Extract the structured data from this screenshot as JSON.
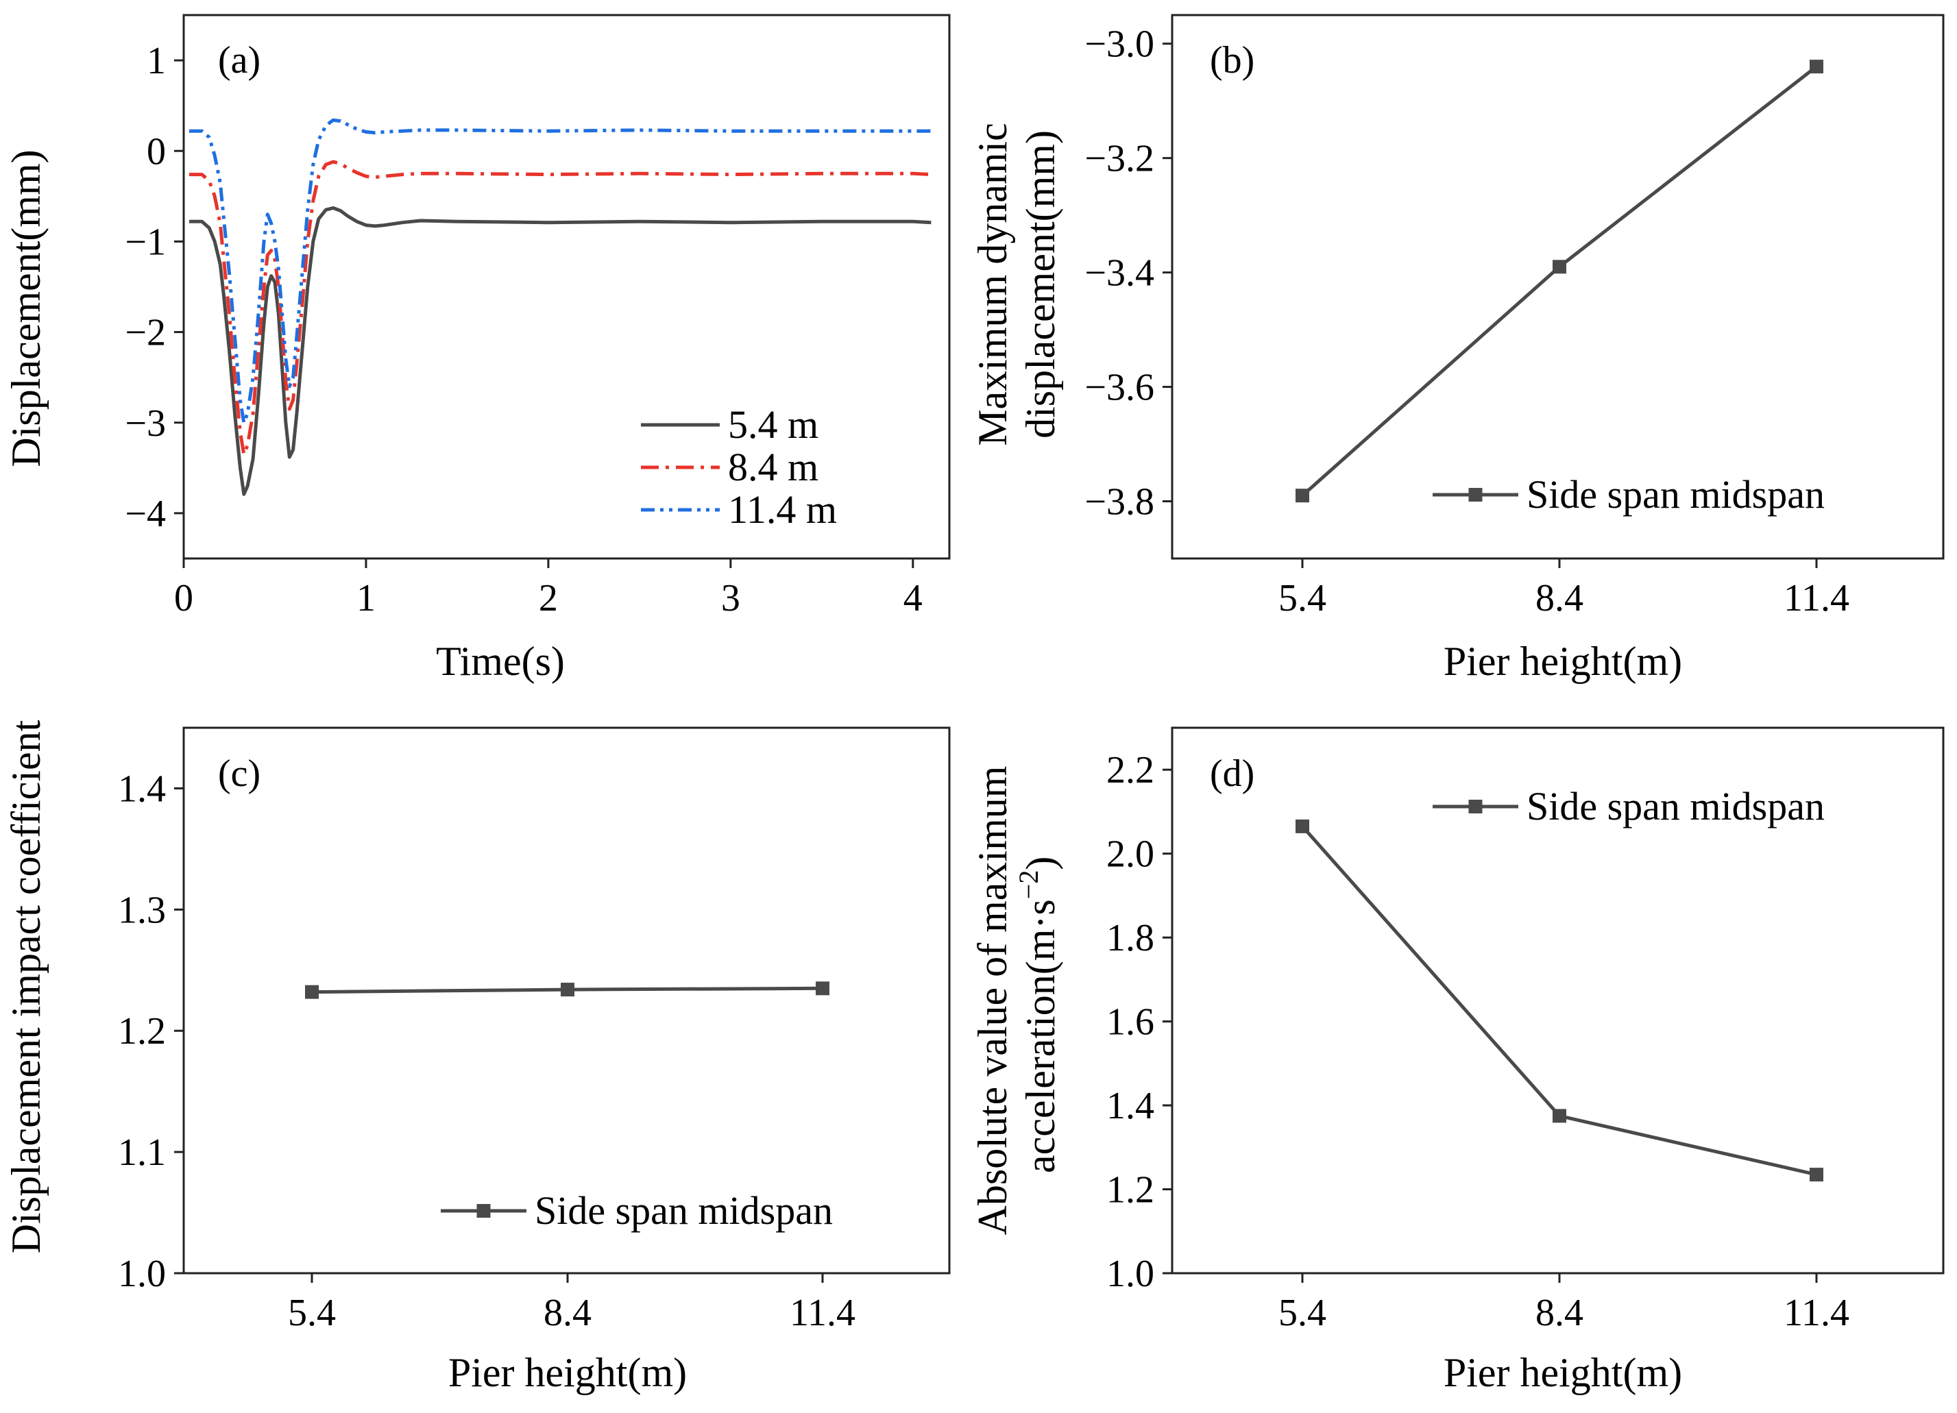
{
  "figure": {
    "panels": [
      {
        "id": "a",
        "label": "(a)"
      },
      {
        "id": "b",
        "label": "(b)"
      },
      {
        "id": "c",
        "label": "(c)"
      },
      {
        "id": "d",
        "label": "(d)"
      }
    ]
  },
  "chart_data": [
    {
      "id": "a",
      "type": "line",
      "panel_label": "(a)",
      "xlabel": "Time(s)",
      "ylabel": "Displacement(mm)",
      "xlim": [
        0,
        4.2
      ],
      "ylim": [
        -4.5,
        1.5
      ],
      "xticks": [
        0,
        1,
        2,
        3,
        4
      ],
      "yticks": [
        -4,
        -3,
        -2,
        -1,
        0,
        1
      ],
      "grid": false,
      "legend_position": "bottom-right",
      "series": [
        {
          "name": "5.4 m",
          "color": "#4a4a4a",
          "style": "solid",
          "x": [
            0.03,
            0.1,
            0.14,
            0.17,
            0.2,
            0.22,
            0.25,
            0.28,
            0.31,
            0.33,
            0.35,
            0.38,
            0.41,
            0.44,
            0.46,
            0.48,
            0.5,
            0.52,
            0.54,
            0.56,
            0.58,
            0.6,
            0.62,
            0.65,
            0.68,
            0.71,
            0.74,
            0.78,
            0.82,
            0.86,
            0.9,
            0.95,
            1.0,
            1.05,
            1.1,
            1.2,
            1.3,
            1.5,
            2.0,
            2.5,
            3.0,
            3.5,
            4.0,
            4.1
          ],
          "values": [
            -0.78,
            -0.78,
            -0.85,
            -1.0,
            -1.25,
            -1.6,
            -2.2,
            -2.9,
            -3.5,
            -3.79,
            -3.7,
            -3.4,
            -2.7,
            -1.9,
            -1.5,
            -1.38,
            -1.45,
            -1.8,
            -2.4,
            -3.0,
            -3.38,
            -3.3,
            -2.9,
            -2.2,
            -1.5,
            -1.0,
            -0.75,
            -0.65,
            -0.63,
            -0.66,
            -0.72,
            -0.78,
            -0.82,
            -0.83,
            -0.82,
            -0.79,
            -0.77,
            -0.78,
            -0.79,
            -0.78,
            -0.79,
            -0.78,
            -0.78,
            -0.79
          ]
        },
        {
          "name": "8.4 m",
          "color": "#e8342c",
          "style": "dashdot",
          "x": [
            0.03,
            0.1,
            0.14,
            0.17,
            0.2,
            0.22,
            0.25,
            0.28,
            0.31,
            0.33,
            0.35,
            0.38,
            0.41,
            0.44,
            0.46,
            0.48,
            0.5,
            0.52,
            0.54,
            0.56,
            0.58,
            0.6,
            0.62,
            0.65,
            0.68,
            0.71,
            0.74,
            0.78,
            0.82,
            0.86,
            0.9,
            0.95,
            1.0,
            1.05,
            1.1,
            1.2,
            1.3,
            1.5,
            2.0,
            2.5,
            3.0,
            3.5,
            4.0,
            4.1
          ],
          "values": [
            -0.26,
            -0.26,
            -0.33,
            -0.5,
            -0.8,
            -1.2,
            -1.8,
            -2.5,
            -3.1,
            -3.35,
            -3.25,
            -2.9,
            -2.2,
            -1.5,
            -1.15,
            -1.1,
            -1.2,
            -1.5,
            -2.0,
            -2.55,
            -2.85,
            -2.75,
            -2.35,
            -1.7,
            -1.0,
            -0.55,
            -0.28,
            -0.15,
            -0.12,
            -0.14,
            -0.19,
            -0.24,
            -0.28,
            -0.29,
            -0.28,
            -0.26,
            -0.25,
            -0.25,
            -0.26,
            -0.25,
            -0.26,
            -0.25,
            -0.25,
            -0.26
          ]
        },
        {
          "name": "11.4 m",
          "color": "#1f6fe0",
          "style": "dashdotdot",
          "x": [
            0.03,
            0.1,
            0.14,
            0.17,
            0.2,
            0.22,
            0.25,
            0.28,
            0.31,
            0.33,
            0.35,
            0.38,
            0.41,
            0.44,
            0.46,
            0.48,
            0.5,
            0.52,
            0.54,
            0.56,
            0.58,
            0.6,
            0.62,
            0.65,
            0.68,
            0.71,
            0.74,
            0.78,
            0.82,
            0.86,
            0.9,
            0.95,
            1.0,
            1.05,
            1.1,
            1.2,
            1.3,
            1.5,
            2.0,
            2.5,
            3.0,
            3.5,
            4.0,
            4.1
          ],
          "values": [
            0.22,
            0.22,
            0.15,
            -0.05,
            -0.35,
            -0.75,
            -1.35,
            -2.05,
            -2.75,
            -3.0,
            -2.9,
            -2.5,
            -1.8,
            -1.0,
            -0.7,
            -0.8,
            -1.0,
            -1.3,
            -1.8,
            -2.3,
            -2.6,
            -2.5,
            -2.05,
            -1.35,
            -0.65,
            -0.15,
            0.12,
            0.28,
            0.34,
            0.33,
            0.29,
            0.24,
            0.21,
            0.2,
            0.21,
            0.22,
            0.23,
            0.23,
            0.22,
            0.23,
            0.22,
            0.22,
            0.22,
            0.22
          ]
        }
      ]
    },
    {
      "id": "b",
      "type": "line",
      "panel_label": "(b)",
      "xlabel": "Pier height(m)",
      "ylabel": "Maximum dynamic displacement(mm)",
      "ylabel_lines": [
        "Maximum dynamic",
        "displacement(mm)"
      ],
      "categories": [
        "5.4",
        "8.4",
        "11.4"
      ],
      "ylim": [
        -3.9,
        -2.95
      ],
      "yticks": [
        -3.8,
        -3.6,
        -3.4,
        -3.2,
        -3.0
      ],
      "ytick_labels": [
        "−3.8",
        "−3.6",
        "−3.4",
        "−3.2",
        "−3.0"
      ],
      "grid": false,
      "legend_position": "bottom-right",
      "series": [
        {
          "name": "Side span midspan",
          "color": "#4a4a4a",
          "marker": "square",
          "values": [
            -3.79,
            -3.39,
            -3.04
          ]
        }
      ]
    },
    {
      "id": "c",
      "type": "line",
      "panel_label": "(c)",
      "xlabel": "Pier height(m)",
      "ylabel": "Displacement impact coefficient",
      "categories": [
        "5.4",
        "8.4",
        "11.4"
      ],
      "ylim": [
        1.0,
        1.45
      ],
      "yticks": [
        1.0,
        1.1,
        1.2,
        1.3,
        1.4
      ],
      "ytick_labels": [
        "1.0",
        "1.1",
        "1.2",
        "1.3",
        "1.4"
      ],
      "grid": false,
      "legend_position": "bottom-right",
      "series": [
        {
          "name": "Side span midspan",
          "color": "#4a4a4a",
          "marker": "square",
          "values": [
            1.232,
            1.234,
            1.235
          ]
        }
      ]
    },
    {
      "id": "d",
      "type": "line",
      "panel_label": "(d)",
      "xlabel": "Pier height(m)",
      "ylabel": "Absolute value of maximum acceleration(m·s⁻²)",
      "ylabel_lines": [
        "Absolute value of maximum",
        "acceleration(m·s",
        "−2",
        ")"
      ],
      "categories": [
        "5.4",
        "8.4",
        "11.4"
      ],
      "ylim": [
        1.0,
        2.3
      ],
      "yticks": [
        1.0,
        1.2,
        1.4,
        1.6,
        1.8,
        2.0,
        2.2
      ],
      "ytick_labels": [
        "1.0",
        "1.2",
        "1.4",
        "1.6",
        "1.8",
        "2.0",
        "2.2"
      ],
      "grid": false,
      "legend_position": "top-right",
      "series": [
        {
          "name": "Side span midspan",
          "color": "#4a4a4a",
          "marker": "square",
          "values": [
            2.065,
            1.375,
            1.235
          ]
        }
      ]
    }
  ]
}
